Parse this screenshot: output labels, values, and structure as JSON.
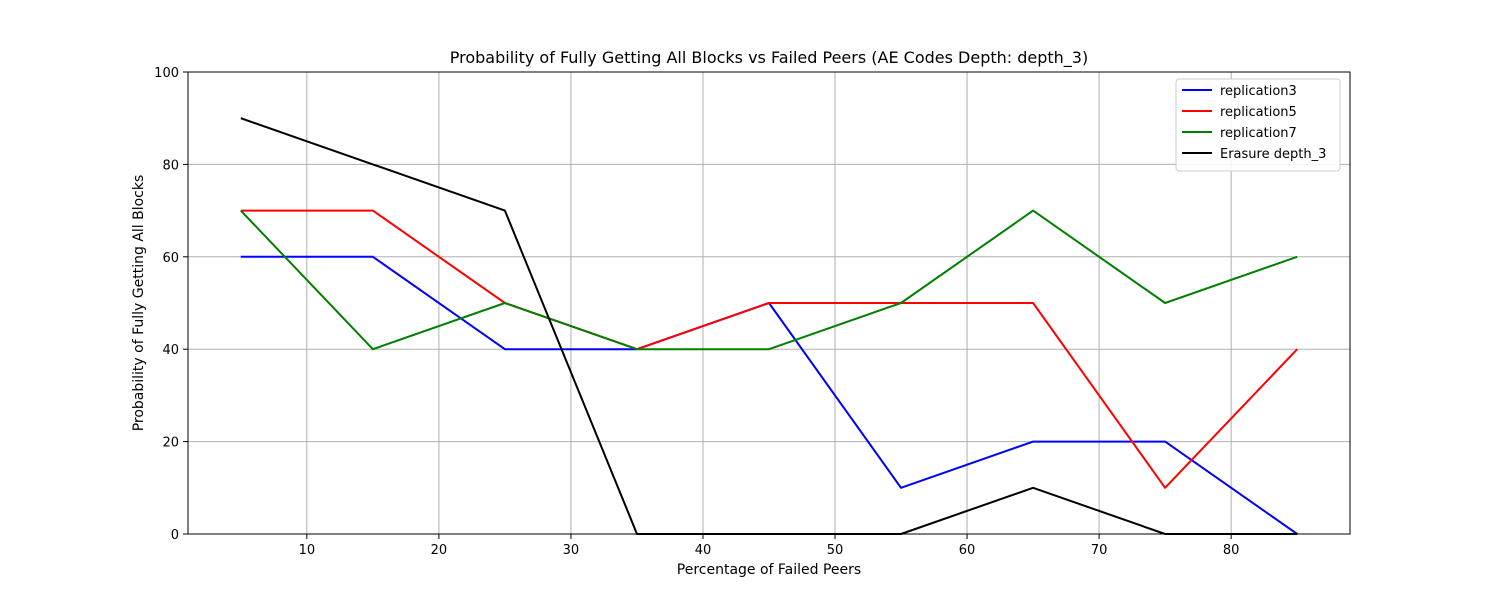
{
  "chart_data": {
    "type": "line",
    "title": "Probability of Fully Getting All Blocks vs Failed Peers (AE Codes Depth: depth_3)",
    "xlabel": "Percentage of Failed Peers",
    "ylabel": "Probability of Fully Getting All Blocks",
    "x": [
      5,
      15,
      25,
      35,
      45,
      55,
      65,
      75,
      85
    ],
    "xlim": [
      1,
      89
    ],
    "ylim": [
      0,
      100
    ],
    "xticks": [
      10,
      20,
      30,
      40,
      50,
      60,
      70,
      80
    ],
    "yticks": [
      0,
      20,
      40,
      60,
      80,
      100
    ],
    "grid": true,
    "legend_position": "top-right",
    "series": [
      {
        "name": "replication3",
        "color": "#0000ff",
        "values": [
          60,
          60,
          40,
          40,
          50,
          10,
          20,
          20,
          0
        ]
      },
      {
        "name": "replication5",
        "color": "#ff0000",
        "values": [
          70,
          70,
          50,
          40,
          50,
          50,
          50,
          10,
          40
        ]
      },
      {
        "name": "replication7",
        "color": "#008000",
        "values": [
          70,
          40,
          50,
          40,
          40,
          50,
          70,
          50,
          60
        ]
      },
      {
        "name": "Erasure depth_3",
        "color": "#000000",
        "values": [
          90,
          80,
          70,
          0,
          0,
          0,
          10,
          0,
          0
        ]
      }
    ]
  }
}
